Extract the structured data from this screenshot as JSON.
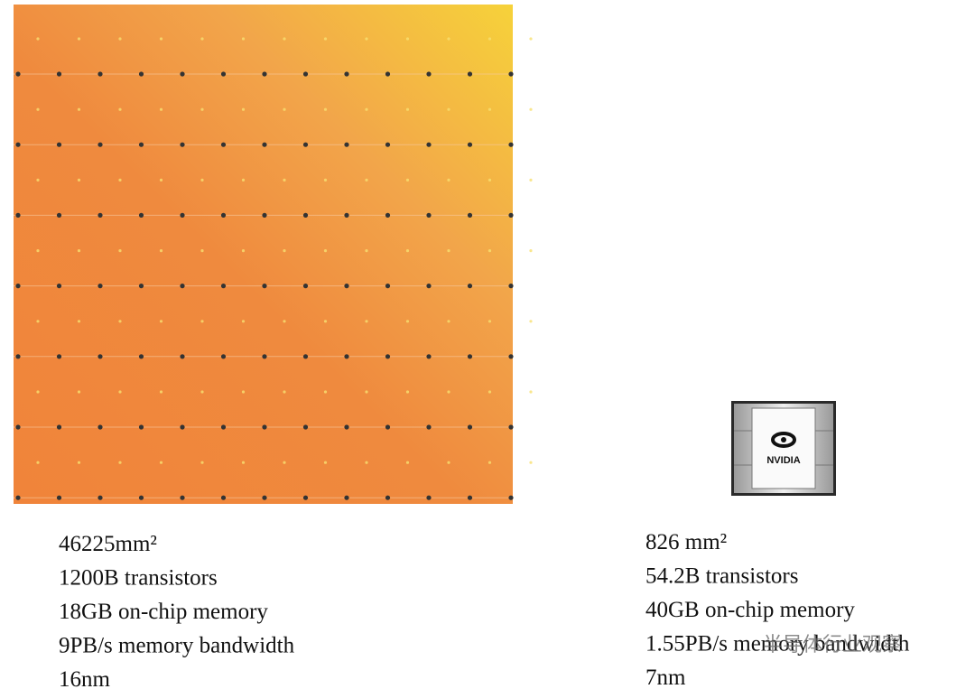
{
  "left": {
    "specs": [
      "46225mm²",
      "1200B transistors",
      "18GB on-chip memory",
      "9PB/s memory bandwidth",
      "16nm"
    ]
  },
  "right": {
    "logo": "NVIDIA",
    "specs": [
      "826 mm²",
      "54.2B transistors",
      "40GB on-chip memory",
      "1.55PB/s memory bandwidth",
      "7nm"
    ]
  },
  "watermark": "半导体行业观察"
}
